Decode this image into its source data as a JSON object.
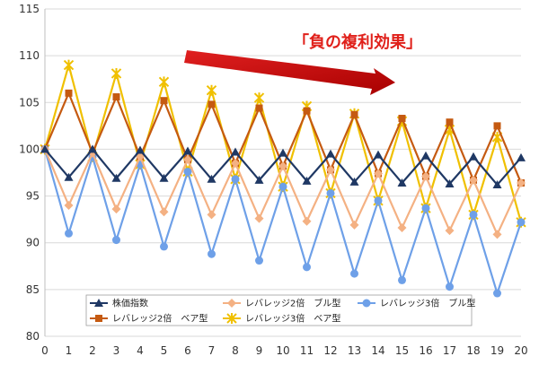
{
  "chart_data": {
    "type": "line",
    "title": "",
    "xlabel": "",
    "ylabel": "",
    "x": [
      0,
      1,
      2,
      3,
      4,
      5,
      6,
      7,
      8,
      9,
      10,
      11,
      12,
      13,
      14,
      15,
      16,
      17,
      18,
      19,
      20
    ],
    "xlim": [
      0,
      20
    ],
    "ylim": [
      80,
      115
    ],
    "y_ticks": [
      80,
      85,
      90,
      95,
      100,
      105,
      110,
      115
    ],
    "grid": "horizontal",
    "annotation": {
      "text": "「負の複利効果」",
      "color": "#e0201a",
      "arrow_color": "#c00000"
    },
    "legend_position": "bottom-inside",
    "series": [
      {
        "name": "株価指数",
        "color": "#1f3864",
        "marker": "triangle",
        "values": [
          100,
          97,
          100,
          96.9,
          99.9,
          96.9,
          99.8,
          96.8,
          99.7,
          96.7,
          99.6,
          96.6,
          99.5,
          96.5,
          99.4,
          96.4,
          99.3,
          96.3,
          99.2,
          96.2,
          99.1
        ]
      },
      {
        "name": "レバレッジ2倍　ブル型",
        "color": "#f4b183",
        "marker": "diamond",
        "values": [
          100,
          94,
          99.6,
          93.6,
          99.2,
          93.3,
          98.9,
          93,
          98.5,
          92.6,
          98.2,
          92.3,
          97.8,
          91.9,
          97.4,
          91.6,
          97.1,
          91.3,
          96.7,
          90.9,
          96.4
        ]
      },
      {
        "name": "レバレッジ3倍　ブル型",
        "color": "#6ea0e8",
        "marker": "circle",
        "values": [
          100,
          91,
          99.2,
          90.3,
          98.4,
          89.6,
          97.6,
          88.8,
          96.8,
          88.1,
          96,
          87.4,
          95.3,
          86.7,
          94.5,
          86,
          93.7,
          85.3,
          93,
          84.6,
          92.2
        ]
      },
      {
        "name": "レバレッジ2倍　ベア型",
        "color": "#c55a11",
        "marker": "square",
        "values": [
          100,
          106,
          99.6,
          105.6,
          99.2,
          105.2,
          98.9,
          104.8,
          98.5,
          104.4,
          98.2,
          104.1,
          97.8,
          103.7,
          97.4,
          103.3,
          97.1,
          102.9,
          96.7,
          102.5,
          96.4
        ]
      },
      {
        "name": "レバレッジ3倍　ベア型",
        "color": "#f0c000",
        "marker": "x",
        "values": [
          100,
          109,
          99.2,
          108.1,
          98.4,
          107.2,
          97.6,
          106.3,
          96.8,
          105.5,
          96,
          104.6,
          95.3,
          103.8,
          94.5,
          103,
          93.7,
          102.1,
          93,
          101.3,
          92.2
        ]
      }
    ]
  }
}
